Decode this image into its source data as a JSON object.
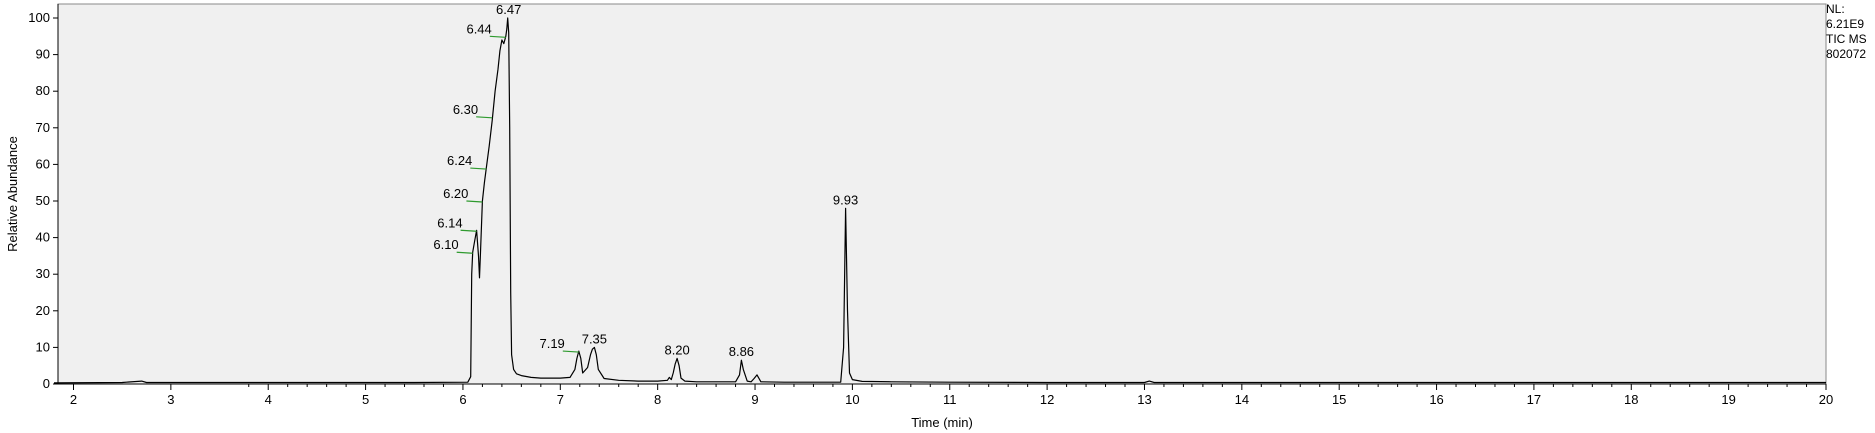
{
  "header": {
    "nl_label": "NL:",
    "nl_value": "6.21E9",
    "scan_filter": "TIC  MS",
    "file_name": "802072"
  },
  "chart_data": {
    "type": "line",
    "title": "",
    "xlabel": "Time (min)",
    "ylabel": "Relative Abundance",
    "xlim": [
      1.8,
      20
    ],
    "ylim": [
      0,
      100
    ],
    "x_ticks": [
      2,
      3,
      4,
      5,
      6,
      7,
      8,
      9,
      10,
      11,
      12,
      13,
      14,
      15,
      16,
      17,
      18,
      19,
      20
    ],
    "y_ticks": [
      0,
      10,
      20,
      30,
      40,
      50,
      60,
      70,
      80,
      90,
      100
    ],
    "grid": false,
    "plot_background": "#f0f0f0",
    "line_color": "#000000",
    "label_tick_color": "#2e9a2e",
    "series": [
      {
        "x": [
          1.8,
          2.5,
          2.7,
          2.75,
          3.5,
          4.5,
          5.5,
          6.05,
          6.08,
          6.09,
          6.1,
          6.12,
          6.14,
          6.16,
          6.17,
          6.18,
          6.2,
          6.22,
          6.24,
          6.27,
          6.3,
          6.33,
          6.36,
          6.38,
          6.4,
          6.42,
          6.44,
          6.45,
          6.46,
          6.47,
          6.48,
          6.49,
          6.5,
          6.52,
          6.55,
          6.6,
          6.7,
          6.8,
          7.0,
          7.1,
          7.15,
          7.17,
          7.19,
          7.21,
          7.23,
          7.28,
          7.31,
          7.33,
          7.35,
          7.37,
          7.39,
          7.45,
          7.6,
          7.8,
          8.0,
          8.1,
          8.12,
          8.14,
          8.16,
          8.18,
          8.2,
          8.22,
          8.24,
          8.28,
          8.4,
          8.6,
          8.8,
          8.84,
          8.86,
          8.88,
          8.92,
          8.96,
          8.99,
          9.02,
          9.06,
          9.3,
          9.6,
          9.88,
          9.91,
          9.93,
          9.95,
          9.97,
          10.0,
          10.1,
          10.4,
          11.0,
          12.0,
          13.0,
          13.05,
          13.1,
          14.0,
          16.0,
          18.0,
          20.0
        ],
        "y": [
          0.3,
          0.4,
          0.8,
          0.4,
          0.4,
          0.4,
          0.4,
          0.5,
          2.0,
          30.0,
          36.0,
          39.0,
          42.0,
          35.0,
          29.0,
          36.0,
          50.0,
          55.0,
          59.0,
          65.0,
          72.0,
          80.0,
          86.0,
          91.0,
          94.0,
          93.0,
          95.0,
          97.0,
          100.0,
          96.0,
          70.0,
          25.0,
          8.0,
          4.0,
          2.8,
          2.3,
          1.8,
          1.6,
          1.6,
          1.8,
          4.0,
          7.0,
          9.0,
          7.0,
          3.0,
          4.5,
          8.0,
          9.5,
          10.0,
          8.0,
          4.0,
          1.5,
          1.0,
          0.8,
          0.8,
          1.0,
          1.8,
          1.2,
          3.0,
          5.5,
          7.0,
          5.0,
          1.6,
          0.8,
          0.6,
          0.6,
          0.6,
          2.5,
          6.5,
          4.0,
          0.8,
          0.6,
          1.5,
          2.5,
          0.6,
          0.5,
          0.5,
          0.5,
          10.0,
          48.0,
          20.0,
          3.0,
          1.2,
          0.7,
          0.6,
          0.5,
          0.4,
          0.4,
          0.8,
          0.4,
          0.4,
          0.4,
          0.4,
          0.4
        ]
      }
    ],
    "peak_labels": [
      {
        "text": "6.10",
        "x": 6.1,
        "y": 36
      },
      {
        "text": "6.14",
        "x": 6.14,
        "y": 42
      },
      {
        "text": "6.20",
        "x": 6.2,
        "y": 50
      },
      {
        "text": "6.24",
        "x": 6.24,
        "y": 59
      },
      {
        "text": "6.30",
        "x": 6.3,
        "y": 73
      },
      {
        "text": "6.44",
        "x": 6.44,
        "y": 95
      },
      {
        "text": "6.47",
        "x": 6.47,
        "y": 100
      },
      {
        "text": "7.19",
        "x": 7.19,
        "y": 9
      },
      {
        "text": "7.35",
        "x": 7.35,
        "y": 10
      },
      {
        "text": "8.20",
        "x": 8.2,
        "y": 7
      },
      {
        "text": "8.86",
        "x": 8.86,
        "y": 6.5
      },
      {
        "text": "9.93",
        "x": 9.93,
        "y": 48
      }
    ]
  }
}
